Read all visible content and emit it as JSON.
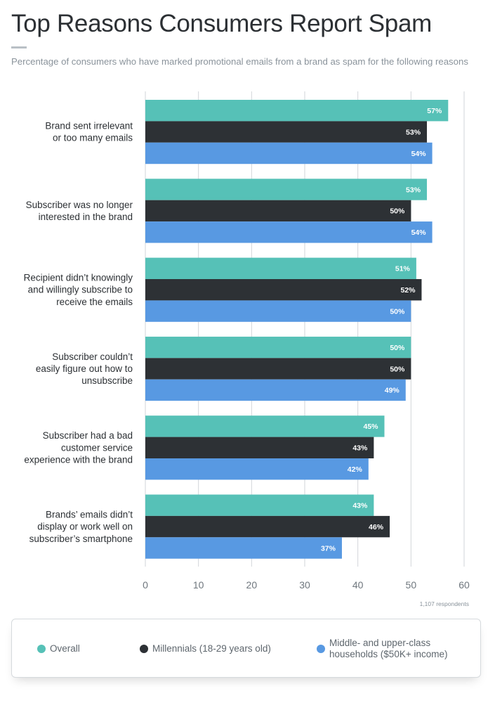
{
  "title": "Top Reasons Consumers Report Spam",
  "subtitle": "Percentage of consumers who have marked promotional emails from a brand as spam for the following reasons",
  "note": "1,107 respondents",
  "colors": {
    "overall": "#56c1b7",
    "millennials": "#2d3135",
    "households": "#5899e2",
    "grid": "#d2d6da"
  },
  "legend": [
    {
      "label_lines": [
        "Overall"
      ],
      "color": "#56c1b7"
    },
    {
      "label_lines": [
        "Millennials (18-29 years old)"
      ],
      "color": "#2d3135"
    },
    {
      "label_lines": [
        "Middle- and upper-class",
        "households ($50K+ income)"
      ],
      "color": "#5899e2"
    }
  ],
  "chart_data": {
    "type": "bar",
    "orientation": "horizontal",
    "title": "Top Reasons Consumers Report Spam",
    "subtitle": "Percentage of consumers who have marked promotional emails from a brand as spam for the following reasons",
    "categories": [
      [
        "Brand sent irrelevant",
        "or too many emails"
      ],
      [
        "Subscriber was no longer",
        "interested in the brand"
      ],
      [
        "Recipient didn’t knowingly",
        "and willingly subscribe to",
        "receive the emails"
      ],
      [
        "Subscriber couldn’t",
        "easily figure out how to",
        "unsubscribe"
      ],
      [
        "Subscriber had a bad",
        "customer service",
        "experience with the brand"
      ],
      [
        "Brands’ emails didn’t",
        "display or work well on",
        "subscriber’s smartphone"
      ]
    ],
    "series": [
      {
        "name": "Overall",
        "color": "#56c1b7",
        "values": [
          57,
          53,
          51,
          50,
          45,
          43
        ]
      },
      {
        "name": "Millennials (18-29 years old)",
        "color": "#2d3135",
        "values": [
          53,
          50,
          52,
          50,
          43,
          46
        ]
      },
      {
        "name": "Middle- and upper-class households ($50K+ income)",
        "color": "#5899e2",
        "values": [
          54,
          54,
          50,
          49,
          42,
          37
        ]
      }
    ],
    "value_suffix": "%",
    "xlim": [
      0,
      60
    ],
    "xticks": [
      0,
      10,
      20,
      30,
      40,
      50,
      60
    ],
    "xlabel": "",
    "ylabel": "",
    "grid": true,
    "legend_position": "bottom"
  }
}
